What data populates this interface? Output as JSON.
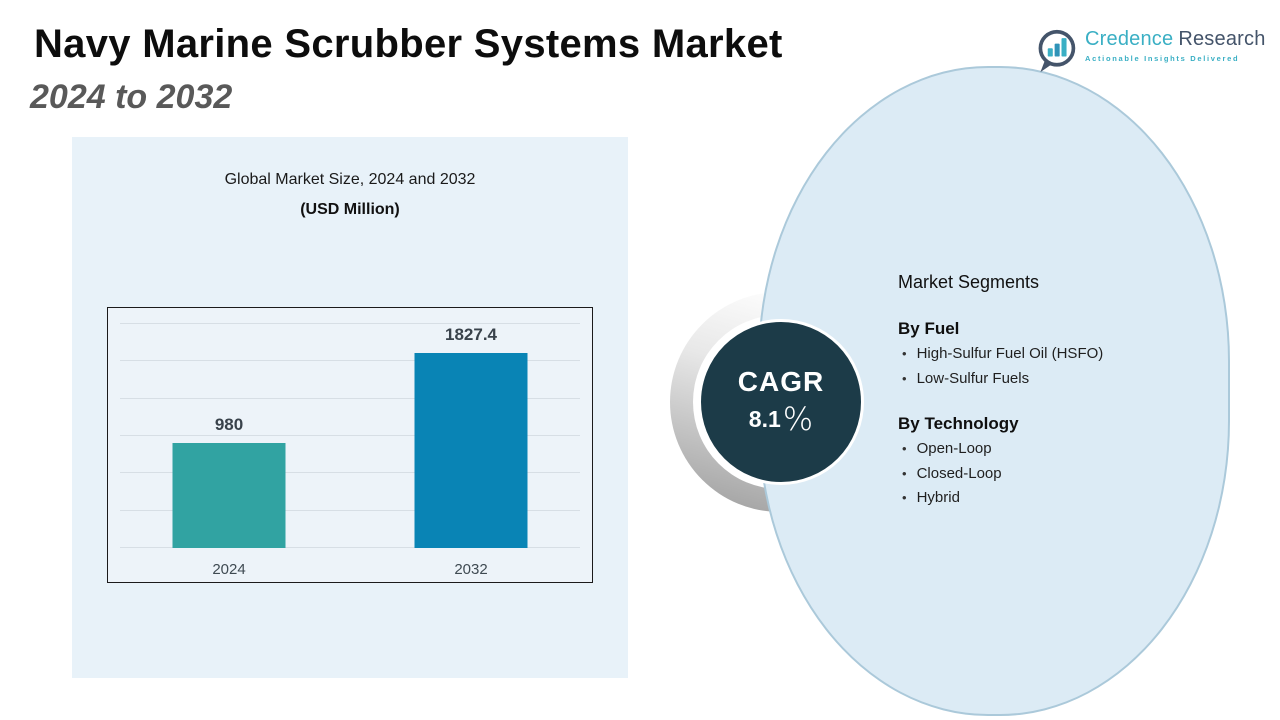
{
  "header": {
    "title": "Navy Marine Scrubber Systems Market",
    "subtitle": "2024 to 2032"
  },
  "logo": {
    "brand_primary": "Credence",
    "brand_secondary": "Research",
    "tagline": "Actionable Insights Delivered"
  },
  "chart_data": {
    "type": "bar",
    "title": "Global Market Size, 2024 and 2032",
    "units_label": "(USD Million)",
    "categories": [
      "2024",
      "2032"
    ],
    "values": [
      980,
      1827.4
    ],
    "value_labels": [
      "980",
      "1827.4"
    ],
    "bar_colors": [
      "#31a3a2",
      "#0984b5"
    ],
    "ylim": [
      0,
      2100
    ],
    "gridlines": 7,
    "grid": true,
    "legend": "none",
    "xlabel": "",
    "ylabel": "USD Million"
  },
  "cagr": {
    "label": "CAGR",
    "value": "8.1",
    "percent_sign": "%"
  },
  "segments": {
    "heading": "Market Segments",
    "bullet": "•",
    "groups": [
      {
        "title": "By Fuel",
        "items": [
          "High-Sulfur Fuel Oil (HSFO)",
          "Low-Sulfur Fuels"
        ]
      },
      {
        "title": "By Technology",
        "items": [
          "Open-Loop",
          "Closed-Loop",
          "Hybrid"
        ]
      }
    ]
  },
  "colors": {
    "accent_teal": "#31a3a2",
    "accent_blue": "#0984b5",
    "cagr_circle": "#1c3b48",
    "panel_bg": "#e8f2f9",
    "blob_bg": "#dcebf5",
    "blob_border": "#abc9da",
    "brand_teal": "#3aafc4",
    "brand_slate": "#44546a",
    "subtitle_gray": "#595959"
  }
}
